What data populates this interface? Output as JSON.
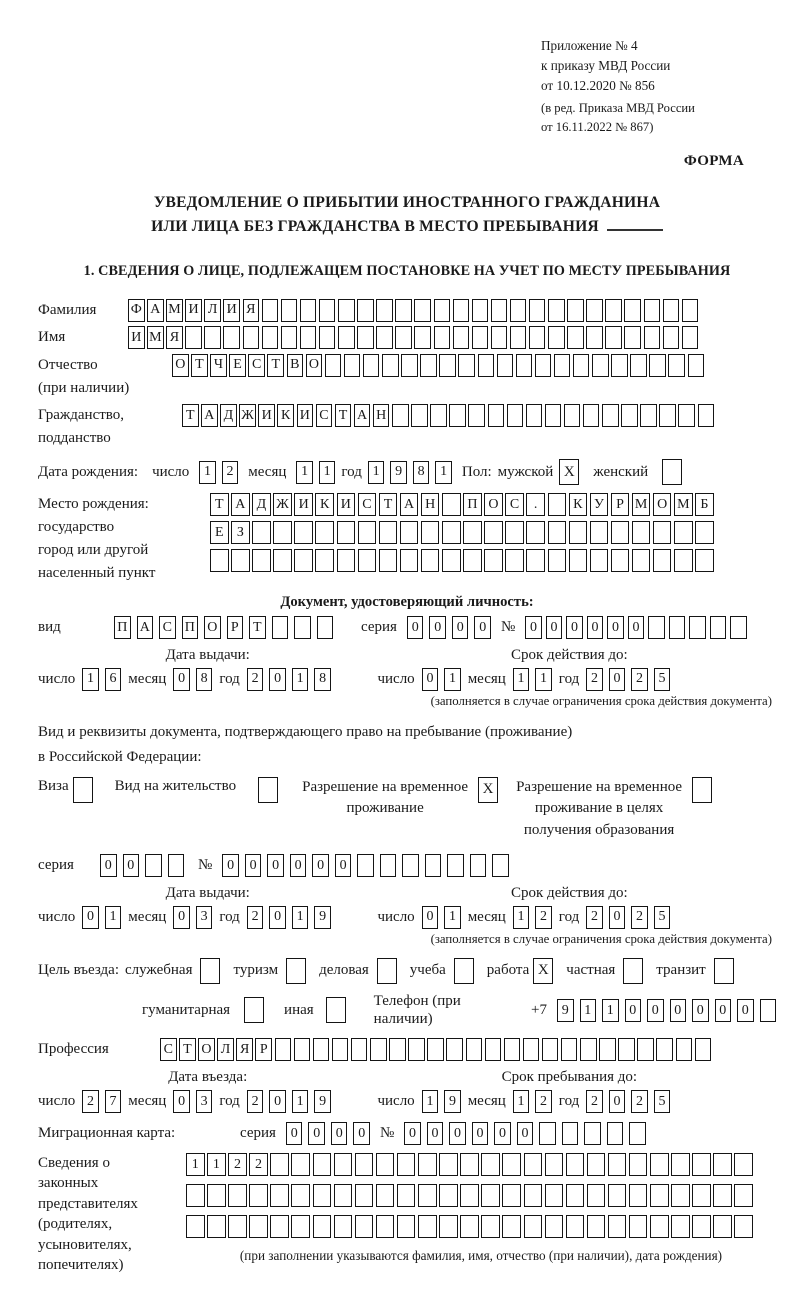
{
  "header": {
    "appendix_line1": "Приложение № 4",
    "appendix_line2": "к приказу МВД России",
    "appendix_line3": "от 10.12.2020 № 856",
    "edition_line1": "(в ред. Приказа МВД России",
    "edition_line2": "от 16.11.2022 № 867)",
    "form_label": "ФОРМА"
  },
  "title": {
    "line1": "УВЕДОМЛЕНИЕ О ПРИБЫТИИ ИНОСТРАННОГО ГРАЖДАНИНА",
    "line2": "ИЛИ ЛИЦА БЕЗ ГРАЖДАНСТВА В МЕСТО ПРЕБЫВАНИЯ"
  },
  "section1_heading": "1. СВЕДЕНИЯ О ЛИЦЕ, ПОДЛЕЖАЩЕМ ПОСТАНОВКЕ НА УЧЕТ ПО МЕСТУ ПРЕБЫВАНИЯ",
  "date_labels": {
    "day": "число",
    "month": "месяц",
    "year": "год"
  },
  "surname": {
    "label": "Фамилия",
    "row": {
      "chars": "ФАМИЛИЯ",
      "count": 30
    }
  },
  "firstname": {
    "label": "Имя",
    "row": {
      "chars": "ИМЯ",
      "count": 30
    }
  },
  "patronymic": {
    "label": "Отчество",
    "label2": "(при наличии)",
    "row": {
      "chars": "ОТЧЕСТВО",
      "count": 28
    }
  },
  "citizenship": {
    "label": "Гражданство,",
    "label2": "подданство",
    "row": {
      "chars": "ТАДЖИКИСТАН",
      "count": 28
    }
  },
  "birth": {
    "label": "Дата рождения:",
    "day": {
      "chars": "12",
      "count": 2
    },
    "month": {
      "chars": "11",
      "count": 2
    },
    "year": {
      "chars": "1981",
      "count": 4
    }
  },
  "sex": {
    "label": "Пол:",
    "male_label": "мужской",
    "male": "X",
    "female_label": "женский",
    "female": ""
  },
  "birthplace": {
    "label1": "Место рождения:",
    "label2": "государство",
    "label3": "город или другой",
    "label4": "населенный пункт",
    "row1": {
      "chars": "ТАДЖИКИСТАН ПОС. КУРМОМБ",
      "count": 24
    },
    "row2": {
      "chars": "ЕЗ",
      "count": 24
    },
    "row3": {
      "chars": "",
      "count": 24
    }
  },
  "identity_doc": {
    "heading": "Документ, удостоверяющий личность:",
    "type_label": "вид",
    "type": {
      "chars": "ПАСПОРТ",
      "count": 10
    },
    "series_label": "серия",
    "series": {
      "chars": "0000",
      "count": 4
    },
    "number_label": "№",
    "number": {
      "chars": "000000",
      "count": 11
    },
    "issue_heading": "Дата выдачи:",
    "issue": {
      "day": {
        "chars": "16",
        "count": 2
      },
      "month": {
        "chars": "08",
        "count": 2
      },
      "year": {
        "chars": "2018",
        "count": 4
      }
    },
    "valid_heading": "Срок действия до:",
    "valid": {
      "day": {
        "chars": "01",
        "count": 2
      },
      "month": {
        "chars": "11",
        "count": 2
      },
      "year": {
        "chars": "2025",
        "count": 4
      }
    },
    "note": "(заполняется в случае ограничения срока действия документа)"
  },
  "residence_doc": {
    "intro_line1": "Вид и реквизиты документа, подтверждающего право на пребывание (проживание)",
    "intro_line2": "в Российской Федерации:",
    "visa_label": "Виза",
    "visa": "",
    "residence_permit_label": "Вид на жительство",
    "residence_permit": "",
    "temp_permit_label1": "Разрешение на временное",
    "temp_permit_label2": "проживание",
    "temp_permit": "X",
    "edu_permit_label1": "Разрешение на временное",
    "edu_permit_label2": "проживание в целях",
    "edu_permit_label3": "получения образования",
    "edu_permit": "",
    "series_label": "серия",
    "series": {
      "chars": "00",
      "count": 4
    },
    "number_label": "№",
    "number": {
      "chars": "000000",
      "count": 13
    },
    "issue_heading": "Дата выдачи:",
    "issue": {
      "day": {
        "chars": "01",
        "count": 2
      },
      "month": {
        "chars": "03",
        "count": 2
      },
      "year": {
        "chars": "2019",
        "count": 4
      }
    },
    "valid_heading": "Срок действия до:",
    "valid": {
      "day": {
        "chars": "01",
        "count": 2
      },
      "month": {
        "chars": "12",
        "count": 2
      },
      "year": {
        "chars": "2025",
        "count": 4
      }
    },
    "note": "(заполняется в случае ограничения срока действия документа)"
  },
  "purpose": {
    "label": "Цель въезда:",
    "opt1_label": "служебная",
    "opt1": "",
    "opt2_label": "туризм",
    "opt2": "",
    "opt3_label": "деловая",
    "opt3": "",
    "opt4_label": "учеба",
    "opt4": "",
    "opt5_label": "работа",
    "opt5": "X",
    "opt6_label": "частная",
    "opt6": "",
    "opt7_label": "транзит",
    "opt7": "",
    "opt8_label": "гуманитарная",
    "opt8": "",
    "opt9_label": "иная",
    "opt9": "",
    "phone_label": "Телефон (при наличии)",
    "phone_prefix": "+7",
    "phone": {
      "chars": "911000000",
      "count": 10
    }
  },
  "profession": {
    "label": "Профессия",
    "row": {
      "chars": "СТОЛЯР",
      "count": 29
    }
  },
  "entry": {
    "issue_heading": "Дата въезда:",
    "issue": {
      "day": {
        "chars": "27",
        "count": 2
      },
      "month": {
        "chars": "03",
        "count": 2
      },
      "year": {
        "chars": "2019",
        "count": 4
      }
    },
    "valid_heading": "Срок пребывания до:",
    "valid": {
      "day": {
        "chars": "19",
        "count": 2
      },
      "month": {
        "chars": "12",
        "count": 2
      },
      "year": {
        "chars": "2025",
        "count": 4
      }
    }
  },
  "migration_card": {
    "label": "Миграционная карта:",
    "series_label": "серия",
    "series": {
      "chars": "0000",
      "count": 4
    },
    "number_label": "№",
    "number": {
      "chars": "000000",
      "count": 11
    }
  },
  "representatives": {
    "label1": "Сведения о",
    "label2": "законных",
    "label3": "представителях",
    "label4": "(родителях,",
    "label5": "усыновителях,",
    "label6": "попечителях)",
    "row1": {
      "chars": "1122",
      "count": 27
    },
    "row2": {
      "chars": "",
      "count": 27
    },
    "row3": {
      "chars": "",
      "count": 27
    },
    "note": "(при заполнении указываются фамилия, имя, отчество (при наличии), дата рождения)"
  }
}
